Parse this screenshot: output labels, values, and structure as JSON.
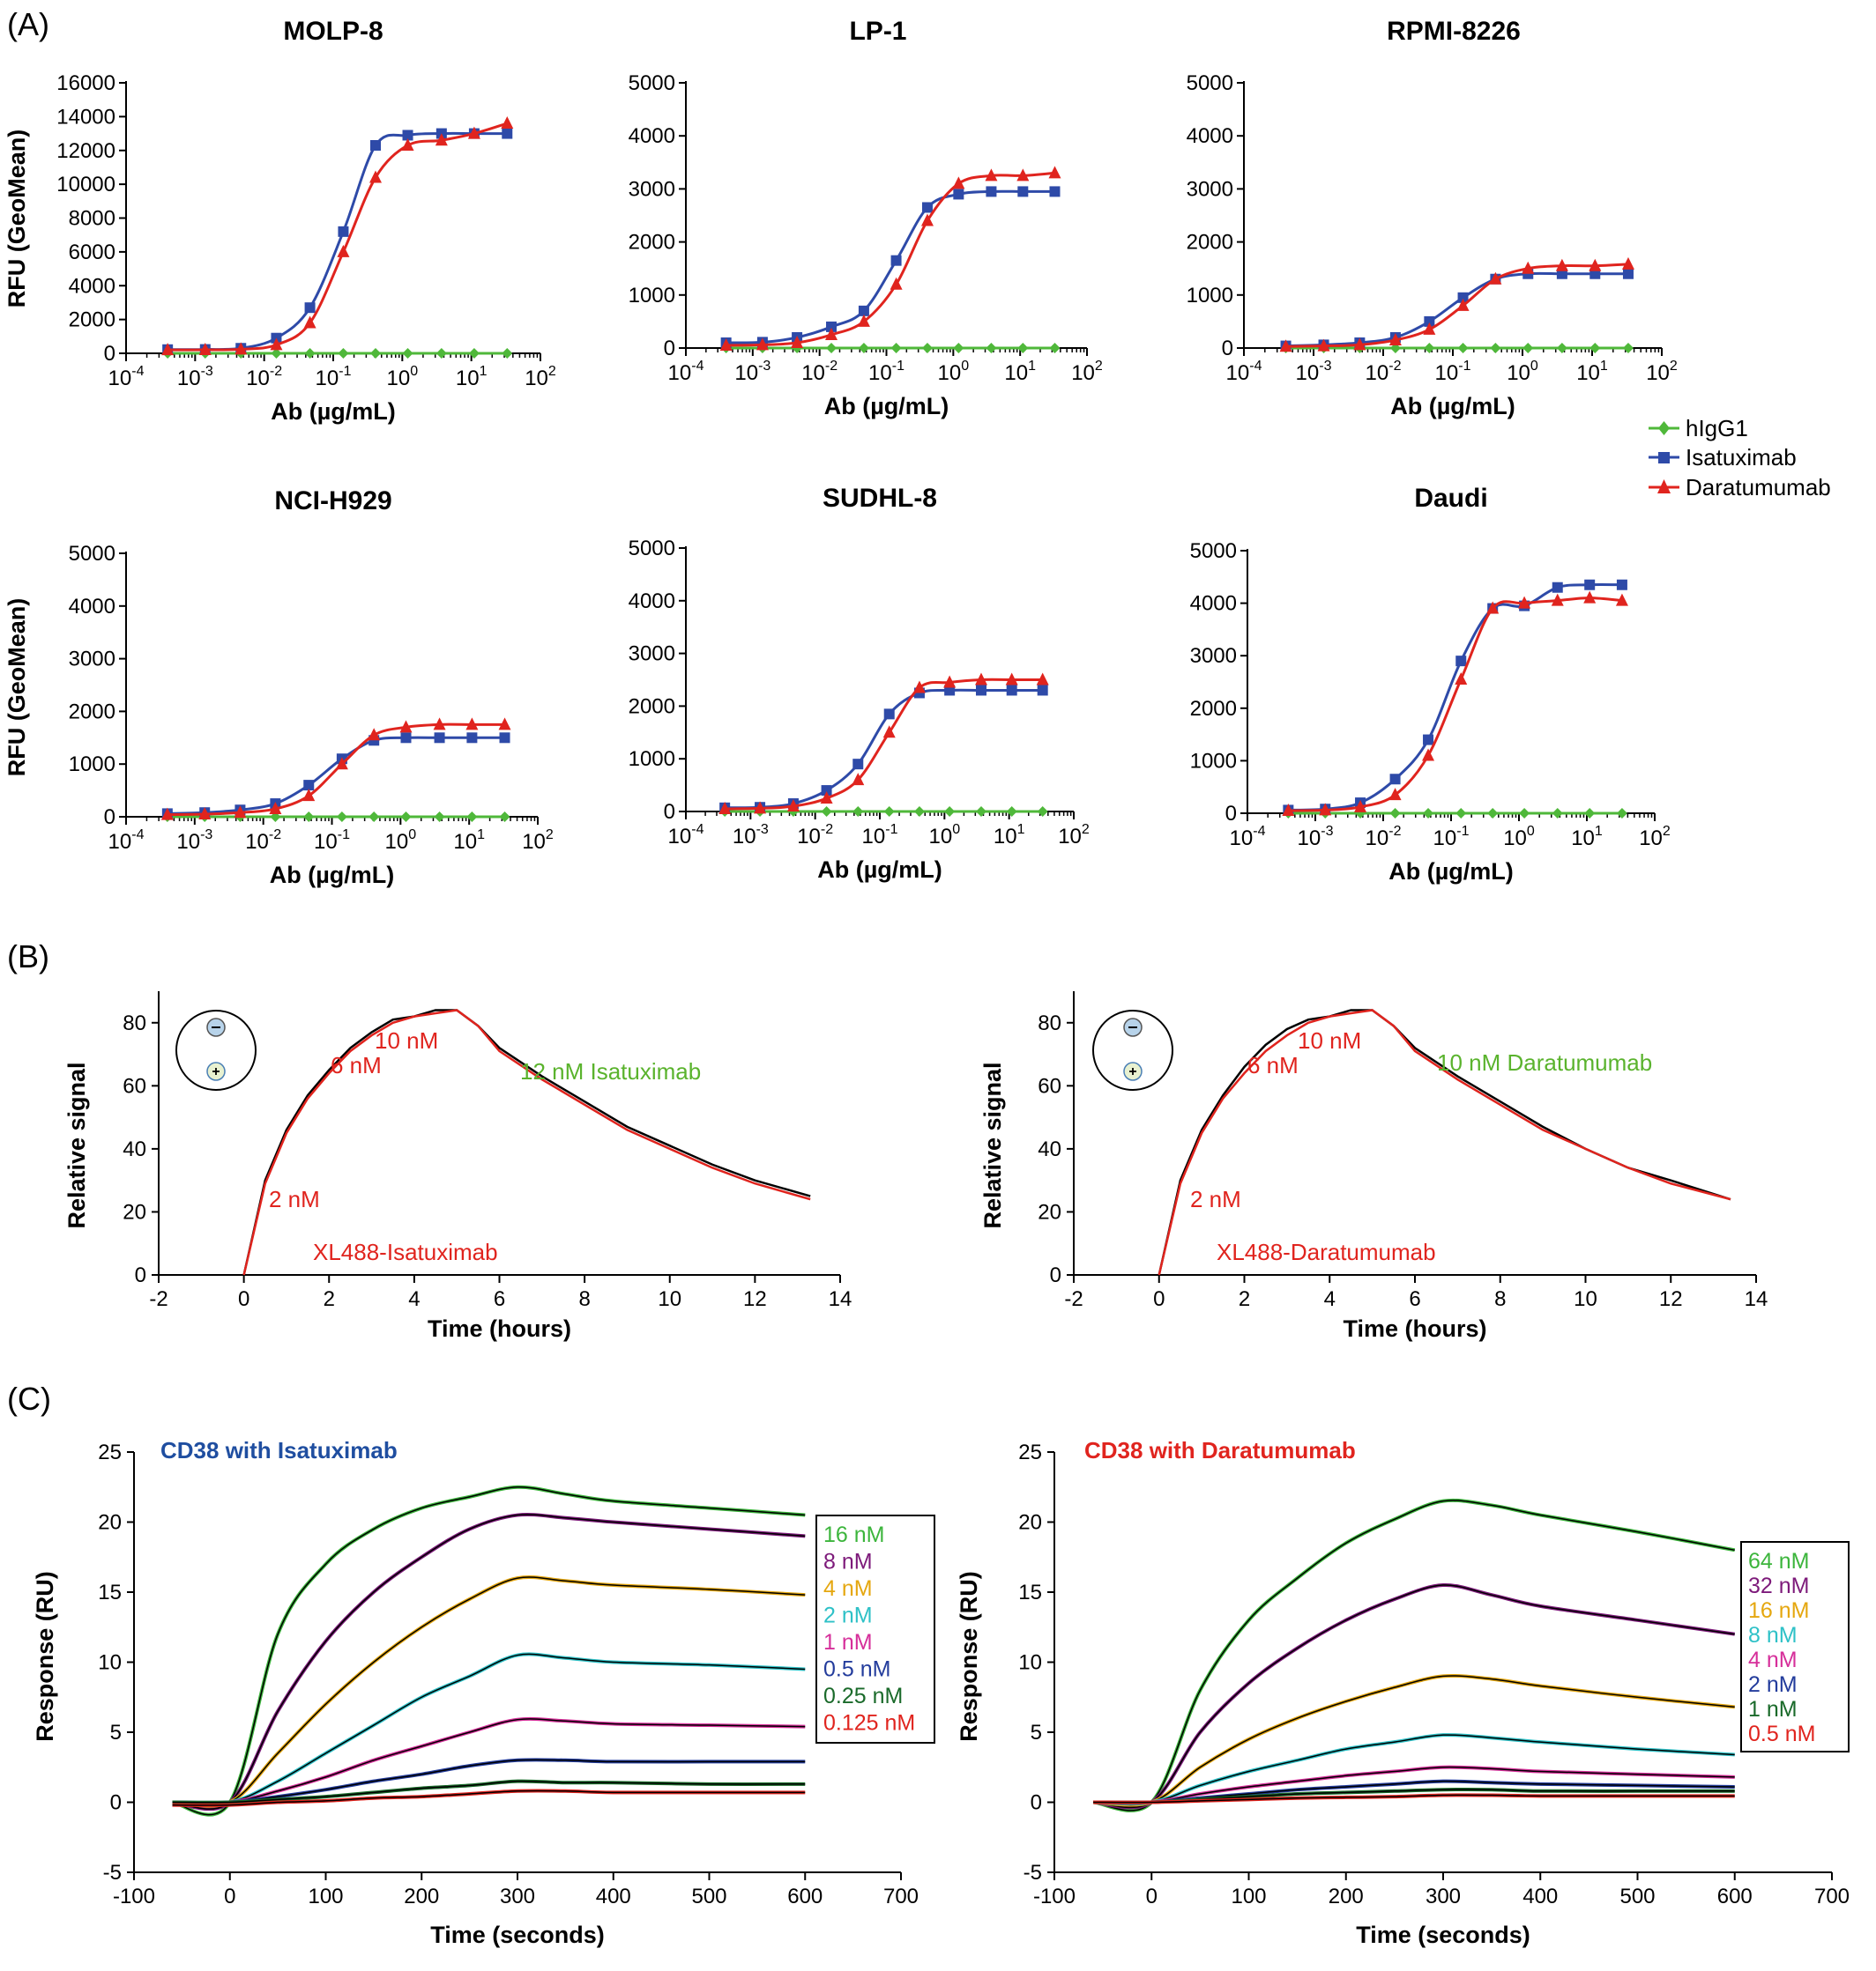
{
  "panel_labels": [
    "(A)",
    "(B)",
    "(C)"
  ],
  "colors": {
    "hIgG1": "#4fb83a",
    "Isatuximab": "#2e4aa8",
    "Daratumumab": "#e0241e",
    "fit_black": "#000000",
    "annotation_red": "#e0241e",
    "annotation_green": "#5ab32d",
    "c_isa_title": "#1f4ea0",
    "c_dara_title": "#e0241e",
    "conc_colors": [
      "#3cb53c",
      "#7d1a7a",
      "#e5a70f",
      "#2ec1c7",
      "#d62f9a",
      "#233c9c",
      "#1a6a2a",
      "#e0241e"
    ]
  },
  "legend_A": {
    "entries": [
      {
        "label": "hIgG1",
        "marker": "diamond",
        "color": "#4fb83a"
      },
      {
        "label": "Isatuximab",
        "marker": "square",
        "color": "#2e4aa8"
      },
      {
        "label": "Daratumumab",
        "marker": "triangle",
        "color": "#e0241e"
      }
    ]
  },
  "chart_data": [
    {
      "panel": "A",
      "type": "scatter",
      "title": "MOLP-8",
      "xlabel": "Ab (µg/mL)",
      "ylabel": "RFU (GeoMean)",
      "xscale": "log",
      "xlim": [
        0.0001,
        100
      ],
      "ylim": [
        0,
        16000
      ],
      "yticks": [
        0,
        2000,
        4000,
        6000,
        8000,
        10000,
        12000,
        14000,
        16000
      ],
      "xtick_exponents": [
        "-4",
        "-3",
        "-2",
        "-1",
        "0",
        "1",
        "2"
      ],
      "x": [
        0.0004,
        0.0014,
        0.0046,
        0.015,
        0.046,
        0.14,
        0.41,
        1.2,
        3.7,
        11,
        33
      ],
      "series": [
        {
          "name": "hIgG1",
          "values": [
            0,
            0,
            0,
            0,
            0,
            0,
            0,
            0,
            0,
            0,
            0
          ]
        },
        {
          "name": "Isatuximab",
          "values": [
            220,
            230,
            300,
            900,
            2700,
            7200,
            12300,
            12900,
            13000,
            13000,
            13000
          ]
        },
        {
          "name": "Daratumumab",
          "values": [
            200,
            210,
            240,
            500,
            1800,
            6000,
            10400,
            12300,
            12600,
            13000,
            13600
          ]
        }
      ]
    },
    {
      "panel": "A",
      "type": "scatter",
      "title": "LP-1",
      "xlabel": "Ab (µg/mL)",
      "ylabel": "",
      "xscale": "log",
      "xlim": [
        0.0001,
        100
      ],
      "ylim": [
        0,
        5000
      ],
      "yticks": [
        0,
        1000,
        2000,
        3000,
        4000,
        5000
      ],
      "xtick_exponents": [
        "-4",
        "-3",
        "-2",
        "-1",
        "0",
        "1",
        "2"
      ],
      "x": [
        0.0004,
        0.0014,
        0.0046,
        0.015,
        0.046,
        0.14,
        0.41,
        1.2,
        3.7,
        11,
        33
      ],
      "series": [
        {
          "name": "hIgG1",
          "values": [
            0,
            0,
            0,
            0,
            0,
            0,
            0,
            0,
            0,
            0,
            0
          ]
        },
        {
          "name": "Isatuximab",
          "values": [
            100,
            110,
            200,
            400,
            700,
            1650,
            2650,
            2900,
            2950,
            2950,
            2950
          ]
        },
        {
          "name": "Daratumumab",
          "values": [
            50,
            60,
            100,
            250,
            500,
            1200,
            2400,
            3100,
            3250,
            3250,
            3300
          ]
        }
      ]
    },
    {
      "panel": "A",
      "type": "scatter",
      "title": "RPMI-8226",
      "xlabel": "Ab (µg/mL)",
      "ylabel": "",
      "xscale": "log",
      "xlim": [
        0.0001,
        100
      ],
      "ylim": [
        0,
        5000
      ],
      "yticks": [
        0,
        1000,
        2000,
        3000,
        4000,
        5000
      ],
      "xtick_exponents": [
        "-4",
        "-3",
        "-2",
        "-1",
        "0",
        "1",
        "2"
      ],
      "x": [
        0.0004,
        0.0014,
        0.0046,
        0.015,
        0.046,
        0.14,
        0.41,
        1.2,
        3.7,
        11,
        33
      ],
      "series": [
        {
          "name": "hIgG1",
          "values": [
            0,
            0,
            0,
            0,
            0,
            0,
            0,
            0,
            0,
            0,
            0
          ]
        },
        {
          "name": "Isatuximab",
          "values": [
            40,
            60,
            100,
            200,
            500,
            950,
            1300,
            1400,
            1400,
            1400,
            1400
          ]
        },
        {
          "name": "Daratumumab",
          "values": [
            30,
            40,
            60,
            150,
            350,
            800,
            1300,
            1500,
            1550,
            1550,
            1580
          ]
        }
      ]
    },
    {
      "panel": "A",
      "type": "scatter",
      "title": "NCI-H929",
      "xlabel": "Ab (µg/mL)",
      "ylabel": "RFU (GeoMean)",
      "xscale": "log",
      "xlim": [
        0.0001,
        100
      ],
      "ylim": [
        0,
        5000
      ],
      "yticks": [
        0,
        1000,
        2000,
        3000,
        4000,
        5000
      ],
      "xtick_exponents": [
        "-4",
        "-3",
        "-2",
        "-1",
        "0",
        "1",
        "2"
      ],
      "x": [
        0.0004,
        0.0014,
        0.0046,
        0.015,
        0.046,
        0.14,
        0.41,
        1.2,
        3.7,
        11,
        33
      ],
      "series": [
        {
          "name": "hIgG1",
          "values": [
            0,
            0,
            0,
            0,
            0,
            0,
            0,
            0,
            0,
            0,
            0
          ]
        },
        {
          "name": "Isatuximab",
          "values": [
            60,
            80,
            130,
            250,
            600,
            1100,
            1450,
            1500,
            1500,
            1500,
            1500
          ]
        },
        {
          "name": "Daratumumab",
          "values": [
            40,
            50,
            80,
            150,
            400,
            1000,
            1550,
            1700,
            1750,
            1750,
            1750
          ]
        }
      ]
    },
    {
      "panel": "A",
      "type": "scatter",
      "title": "SUDHL-8",
      "xlabel": "Ab (µg/mL)",
      "ylabel": "",
      "xscale": "log",
      "xlim": [
        0.0001,
        100
      ],
      "ylim": [
        0,
        5000
      ],
      "yticks": [
        0,
        1000,
        2000,
        3000,
        4000,
        5000
      ],
      "xtick_exponents": [
        "-4",
        "-3",
        "-2",
        "-1",
        "0",
        "1",
        "2"
      ],
      "x": [
        0.0004,
        0.0014,
        0.0046,
        0.015,
        0.046,
        0.14,
        0.41,
        1.2,
        3.7,
        11,
        33
      ],
      "series": [
        {
          "name": "hIgG1",
          "values": [
            0,
            0,
            0,
            0,
            0,
            0,
            0,
            0,
            0,
            0,
            0
          ]
        },
        {
          "name": "Isatuximab",
          "values": [
            70,
            80,
            150,
            400,
            900,
            1850,
            2250,
            2300,
            2300,
            2300,
            2300
          ]
        },
        {
          "name": "Daratumumab",
          "values": [
            50,
            60,
            100,
            250,
            600,
            1500,
            2350,
            2450,
            2500,
            2500,
            2500
          ]
        }
      ]
    },
    {
      "panel": "A",
      "type": "scatter",
      "title": "Daudi",
      "xlabel": "Ab (µg/mL)",
      "ylabel": "",
      "xscale": "log",
      "xlim": [
        0.0001,
        100
      ],
      "ylim": [
        0,
        5000
      ],
      "yticks": [
        0,
        1000,
        2000,
        3000,
        4000,
        5000
      ],
      "xtick_exponents": [
        "-4",
        "-3",
        "-2",
        "-1",
        "0",
        "1",
        "2"
      ],
      "x": [
        0.0004,
        0.0014,
        0.0046,
        0.015,
        0.046,
        0.14,
        0.41,
        1.2,
        3.7,
        11,
        33
      ],
      "series": [
        {
          "name": "hIgG1",
          "values": [
            0,
            0,
            0,
            0,
            0,
            0,
            0,
            0,
            0,
            0,
            0
          ]
        },
        {
          "name": "Isatuximab",
          "values": [
            60,
            80,
            200,
            650,
            1400,
            2900,
            3900,
            3950,
            4300,
            4350,
            4350
          ]
        },
        {
          "name": "Daratumumab",
          "values": [
            50,
            60,
            120,
            350,
            1100,
            2550,
            3900,
            4000,
            4050,
            4100,
            4050
          ]
        }
      ]
    },
    {
      "panel": "B",
      "type": "line",
      "title": "",
      "xlabel": "Time (hours)",
      "ylabel": "Relative signal",
      "xlim": [
        -2,
        14
      ],
      "ylim": [
        0,
        90
      ],
      "xticks": [
        -2,
        0,
        2,
        4,
        6,
        8,
        10,
        12,
        14
      ],
      "yticks": [
        0,
        20,
        40,
        60,
        80
      ],
      "annotations": [
        {
          "text": "10 nM",
          "color": "red"
        },
        {
          "text": "6 nM",
          "color": "red"
        },
        {
          "text": "2 nM",
          "color": "red"
        },
        {
          "text": "XL488-Isatuximab",
          "color": "red"
        },
        {
          "text": "12 nM Isatuximab",
          "color": "green"
        }
      ],
      "x": [
        0,
        0.5,
        1,
        1.5,
        2,
        2.5,
        3,
        3.5,
        4,
        4.5,
        5,
        5.5,
        6,
        7,
        8,
        9,
        10,
        11,
        12,
        13.3
      ],
      "series": [
        {
          "values": [
            0,
            30,
            46,
            57,
            65,
            72,
            77,
            81,
            82,
            84,
            84,
            79,
            72,
            63,
            55,
            47,
            41,
            35,
            30,
            25
          ]
        },
        {
          "values": [
            0,
            29,
            45,
            56,
            64,
            71,
            76,
            80,
            82,
            83,
            84,
            79,
            71,
            62,
            54,
            46,
            40,
            34,
            29,
            24
          ]
        }
      ]
    },
    {
      "panel": "B",
      "type": "line",
      "title": "",
      "xlabel": "Time (hours)",
      "ylabel": "Relative signal",
      "xlim": [
        -2,
        14
      ],
      "ylim": [
        0,
        90
      ],
      "xticks": [
        -2,
        0,
        2,
        4,
        6,
        8,
        10,
        12,
        14
      ],
      "yticks": [
        0,
        20,
        40,
        60,
        80
      ],
      "annotations": [
        {
          "text": "10 nM",
          "color": "red"
        },
        {
          "text": "6 nM",
          "color": "red"
        },
        {
          "text": "2 nM",
          "color": "red"
        },
        {
          "text": "XL488-Daratumumab",
          "color": "red"
        },
        {
          "text": "10 nM Daratumumab",
          "color": "green"
        }
      ],
      "x": [
        0,
        0.5,
        1,
        1.5,
        2,
        2.5,
        3,
        3.5,
        4,
        4.5,
        5,
        5.5,
        6,
        7,
        8,
        9,
        10,
        11,
        12,
        13.4
      ],
      "series": [
        {
          "values": [
            0,
            30,
            46,
            57,
            66,
            73,
            78,
            81,
            82,
            84,
            84,
            79,
            72,
            63,
            55,
            47,
            40,
            34,
            30,
            24
          ]
        },
        {
          "values": [
            0,
            29,
            45,
            56,
            64,
            71,
            76,
            80,
            82,
            83,
            84,
            79,
            71,
            62,
            54,
            46,
            40,
            34,
            29,
            24
          ]
        }
      ]
    },
    {
      "panel": "C",
      "type": "line",
      "title": "CD38 with Isatuximab",
      "xlabel": "Time (seconds)",
      "ylabel": "Response (RU)",
      "xlim": [
        -100,
        700
      ],
      "ylim": [
        -5,
        25
      ],
      "xticks": [
        -100,
        0,
        100,
        200,
        300,
        400,
        500,
        600,
        700
      ],
      "yticks": [
        -5,
        0,
        5,
        10,
        15,
        20,
        25
      ],
      "x": [
        -60,
        0,
        50,
        100,
        150,
        200,
        250,
        300,
        350,
        400,
        500,
        600
      ],
      "series": [
        {
          "name": "16 nM",
          "values": [
            0,
            0,
            12,
            17,
            19.5,
            21,
            21.8,
            22.5,
            22,
            21.5,
            21,
            20.5
          ]
        },
        {
          "name": "8 nM",
          "values": [
            0,
            0,
            6.5,
            11.5,
            15,
            17.5,
            19.5,
            20.5,
            20.3,
            20,
            19.5,
            19
          ]
        },
        {
          "name": "4 nM",
          "values": [
            0,
            0,
            3.5,
            7,
            10,
            12.5,
            14.5,
            16,
            15.8,
            15.5,
            15.2,
            14.8
          ]
        },
        {
          "name": "2 nM",
          "values": [
            0,
            0,
            1.5,
            3.5,
            5.5,
            7.5,
            9,
            10.5,
            10.3,
            10,
            9.8,
            9.5
          ]
        },
        {
          "name": "1 nM",
          "values": [
            0,
            0,
            0.8,
            1.8,
            3,
            4,
            5,
            5.9,
            5.8,
            5.6,
            5.5,
            5.4
          ]
        },
        {
          "name": "0.5 nM",
          "values": [
            0,
            0,
            0.4,
            0.9,
            1.5,
            2,
            2.6,
            3,
            3,
            2.9,
            2.9,
            2.9
          ]
        },
        {
          "name": "0.25 nM",
          "values": [
            0,
            0,
            0.2,
            0.4,
            0.7,
            1,
            1.2,
            1.5,
            1.4,
            1.4,
            1.3,
            1.3
          ]
        },
        {
          "name": "0.125 nM",
          "values": [
            -0.2,
            -0.2,
            0,
            0.1,
            0.3,
            0.4,
            0.6,
            0.8,
            0.8,
            0.7,
            0.7,
            0.7
          ]
        }
      ]
    },
    {
      "panel": "C",
      "type": "line",
      "title": "CD38 with Daratumumab",
      "xlabel": "Time (seconds)",
      "ylabel": "Response (RU)",
      "xlim": [
        -100,
        700
      ],
      "ylim": [
        -5,
        25
      ],
      "xticks": [
        -100,
        0,
        100,
        200,
        300,
        400,
        500,
        600,
        700
      ],
      "yticks": [
        -5,
        0,
        5,
        10,
        15,
        20,
        25
      ],
      "x": [
        -60,
        0,
        50,
        100,
        150,
        200,
        250,
        300,
        350,
        400,
        500,
        600
      ],
      "series": [
        {
          "name": "64 nM",
          "values": [
            0,
            0,
            8,
            13,
            16,
            18.5,
            20.2,
            21.5,
            21.2,
            20.5,
            19.3,
            18
          ]
        },
        {
          "name": "32 nM",
          "values": [
            0,
            0,
            5,
            8.5,
            11,
            13,
            14.5,
            15.5,
            14.8,
            14,
            13,
            12
          ]
        },
        {
          "name": "16 nM",
          "values": [
            0,
            0,
            2.5,
            4.5,
            6,
            7.2,
            8.2,
            9,
            8.8,
            8.3,
            7.5,
            6.8
          ]
        },
        {
          "name": "8 nM",
          "values": [
            0,
            0,
            1.2,
            2.2,
            3,
            3.8,
            4.3,
            4.8,
            4.6,
            4.3,
            3.8,
            3.4
          ]
        },
        {
          "name": "4 nM",
          "values": [
            0,
            0,
            0.6,
            1.1,
            1.5,
            1.9,
            2.2,
            2.5,
            2.4,
            2.2,
            2,
            1.8
          ]
        },
        {
          "name": "2 nM",
          "values": [
            0,
            0,
            0.3,
            0.6,
            0.9,
            1.1,
            1.3,
            1.5,
            1.4,
            1.3,
            1.2,
            1.1
          ]
        },
        {
          "name": "1 nM",
          "values": [
            0,
            0,
            0.2,
            0.4,
            0.6,
            0.7,
            0.8,
            0.9,
            0.9,
            0.8,
            0.8,
            0.8
          ]
        },
        {
          "name": "0.5 nM",
          "values": [
            0,
            0,
            0.1,
            0.2,
            0.3,
            0.35,
            0.4,
            0.5,
            0.5,
            0.45,
            0.45,
            0.45
          ]
        }
      ]
    }
  ]
}
